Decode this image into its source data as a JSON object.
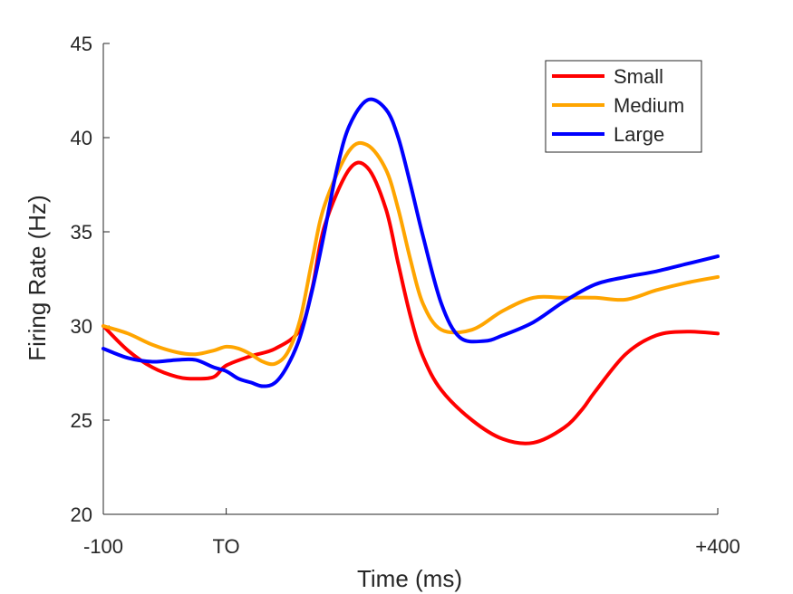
{
  "chart_data": {
    "type": "line",
    "xlabel": "Time (ms)",
    "ylabel": "Firing Rate (Hz)",
    "xlim": [
      -100,
      400
    ],
    "ylim": [
      20,
      45
    ],
    "x_ticks": [
      {
        "value": -100,
        "label": "-100"
      },
      {
        "value": 0,
        "label": "TO"
      },
      {
        "value": 400,
        "label": "+400"
      }
    ],
    "y_ticks": [
      20,
      25,
      30,
      35,
      40,
      45
    ],
    "grid": false,
    "legend_position": "top-right",
    "series": [
      {
        "name": "Small",
        "color": "#ff0000",
        "x": [
          -100,
          -80,
          -60,
          -40,
          -25,
          -10,
          0,
          20,
          40,
          60,
          70,
          80,
          100,
          115,
          130,
          140,
          150,
          160,
          175,
          200,
          225,
          250,
          275,
          290,
          300,
          325,
          350,
          375,
          400
        ],
        "y": [
          30.0,
          28.7,
          27.8,
          27.3,
          27.2,
          27.3,
          27.9,
          28.4,
          28.8,
          29.8,
          32.0,
          35.3,
          38.3,
          38.4,
          36.2,
          33.3,
          30.5,
          28.4,
          26.6,
          25.0,
          24.0,
          23.8,
          24.6,
          25.6,
          26.5,
          28.5,
          29.5,
          29.7,
          29.6
        ]
      },
      {
        "name": "Medium",
        "color": "#ffa500",
        "x": [
          -100,
          -80,
          -60,
          -40,
          -25,
          -10,
          0,
          10,
          20,
          30,
          40,
          50,
          60,
          70,
          80,
          100,
          115,
          130,
          140,
          150,
          160,
          175,
          200,
          225,
          250,
          275,
          300,
          325,
          350,
          375,
          400
        ],
        "y": [
          30.0,
          29.6,
          29.0,
          28.6,
          28.5,
          28.7,
          28.9,
          28.8,
          28.5,
          28.1,
          28.0,
          28.6,
          30.3,
          33.5,
          36.4,
          39.3,
          39.6,
          38.3,
          36.2,
          33.5,
          31.2,
          29.8,
          29.8,
          30.8,
          31.5,
          31.5,
          31.5,
          31.4,
          31.9,
          32.3,
          32.6
        ]
      },
      {
        "name": "Large",
        "color": "#0000ff",
        "x": [
          -100,
          -80,
          -60,
          -40,
          -25,
          -10,
          0,
          10,
          20,
          30,
          40,
          50,
          60,
          70,
          80,
          90,
          100,
          115,
          130,
          140,
          150,
          160,
          175,
          190,
          210,
          225,
          250,
          275,
          300,
          325,
          350,
          375,
          400
        ],
        "y": [
          28.8,
          28.3,
          28.1,
          28.2,
          28.2,
          27.8,
          27.6,
          27.2,
          27.0,
          26.8,
          27.0,
          27.9,
          29.4,
          31.9,
          35.0,
          38.3,
          40.6,
          42.0,
          41.5,
          40.0,
          37.5,
          34.8,
          31.2,
          29.4,
          29.2,
          29.5,
          30.2,
          31.3,
          32.2,
          32.6,
          32.9,
          33.3,
          33.7
        ]
      }
    ]
  }
}
